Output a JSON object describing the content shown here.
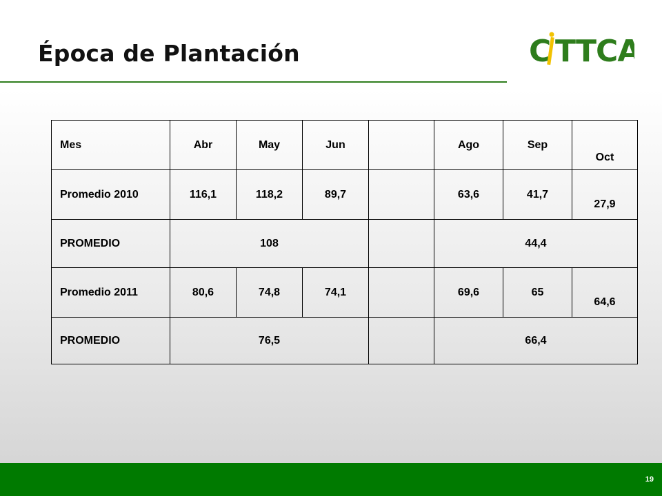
{
  "slide": {
    "title": "Época de Plantación",
    "logo_text": "CITTCA",
    "page_number": "19"
  },
  "table": {
    "header": [
      "Mes",
      "Abr",
      "May",
      "Jun",
      "",
      "Ago",
      "Sep",
      "Oct"
    ],
    "rows": [
      {
        "label": "Promedio 2010",
        "abr": "116,1",
        "may": "118,2",
        "jun": "89,7",
        "blank": "",
        "ago": "63,6",
        "sep": "41,7",
        "oct": "27,9"
      },
      {
        "label": "PROMEDIO",
        "first_avg": "108",
        "blank": "",
        "second_avg": "44,4"
      },
      {
        "label": "Promedio 2011",
        "abr": "80,6",
        "may": "74,8",
        "jun": "74,1",
        "blank": "",
        "ago": "69,6",
        "sep": "65",
        "oct": "64,6"
      },
      {
        "label": "PROMEDIO",
        "first_avg": "76,5",
        "blank": "",
        "second_avg": "66,4"
      }
    ]
  },
  "colors": {
    "accent_green": "#007a00",
    "logo_green": "#2e7d1c",
    "logo_yellow": "#f2c200"
  }
}
